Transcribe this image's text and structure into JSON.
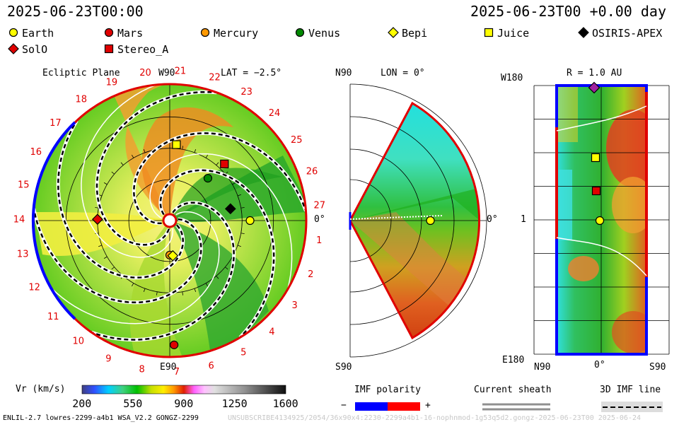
{
  "header": {
    "datetime_left": "2025-06-23T00:00",
    "datetime_right": "2025-06-23T00 +0.00 day"
  },
  "legend": [
    {
      "name": "Earth",
      "marker": "circle",
      "color": "#ffff00"
    },
    {
      "name": "Mars",
      "marker": "circle",
      "color": "#e00000"
    },
    {
      "name": "Mercury",
      "marker": "circle",
      "color": "#ff9900"
    },
    {
      "name": "Venus",
      "marker": "circle",
      "color": "#008800"
    },
    {
      "name": "Bepi",
      "marker": "diamond",
      "color": "#ffff00"
    },
    {
      "name": "Juice",
      "marker": "square",
      "color": "#ffff00"
    },
    {
      "name": "OSIRIS-APEX",
      "marker": "diamond",
      "color": "#000000"
    },
    {
      "name": "SolO",
      "marker": "diamond",
      "color": "#e00000"
    },
    {
      "name": "Stereo_A",
      "marker": "square",
      "color": "#e00000"
    }
  ],
  "panels": {
    "ecliptic": {
      "title": "Ecliptic Plane",
      "top_label": "W90",
      "bottom_label": "E90",
      "lat_label": "LAT = −2.5°",
      "right_label": "0°"
    },
    "meridional": {
      "top_label": "N90",
      "bottom_label": "S90",
      "lon_label": "LON = 0°",
      "right_label": "0°"
    },
    "radial": {
      "r_label": "R = 1.0 AU",
      "top_left": "W180",
      "bottom_left": "E180",
      "mid_left": "1",
      "bottom_n": "N90",
      "bottom_mid": "0°",
      "bottom_s": "S90"
    }
  },
  "carrington_numbers": [
    "1",
    "2",
    "3",
    "4",
    "5",
    "6",
    "7",
    "8",
    "9",
    "10",
    "11",
    "12",
    "13",
    "14",
    "15",
    "16",
    "17",
    "18",
    "19",
    "20",
    "21",
    "22",
    "23",
    "24",
    "25",
    "26",
    "27"
  ],
  "colorbar": {
    "label": "Vr (km/s)",
    "ticks": [
      "200",
      "550",
      "900",
      "1250",
      "1600"
    ],
    "min": 200,
    "max": 1600
  },
  "imf_polarity": {
    "title": "IMF polarity",
    "minus": "−",
    "plus": "+",
    "negative_color": "#0000ff",
    "positive_color": "#ff0000"
  },
  "current_sheath": {
    "title": "Current sheath"
  },
  "imf_line": {
    "title": "3D IMF line"
  },
  "footer": {
    "left": "ENLIL-2.7 lowres-2299-a4b1 WSA_V2.2 GONGZ-2299",
    "right": "UNSUBSCRIBE4134925/2054/36x90x4:2230-2299a4b1-16-nophnmod-1g53q5d2.gongz-2025-06-23T00 2025-06-24"
  },
  "chart_data": {
    "type": "heatmap",
    "quantity": "Vr (km/s)",
    "color_range": [
      200,
      1600
    ],
    "bodies": [
      {
        "name": "Earth",
        "lon_deg": 0,
        "r_au": 1.0
      },
      {
        "name": "Mars",
        "lon_deg": -88,
        "r_au": 1.55
      },
      {
        "name": "Mercury",
        "lon_deg": -90,
        "r_au": 0.43
      },
      {
        "name": "Venus",
        "lon_deg": 48,
        "r_au": 0.71
      },
      {
        "name": "Bepi",
        "lon_deg": -85,
        "r_au": 0.44
      },
      {
        "name": "Juice",
        "lon_deg": 85,
        "r_au": 0.95
      },
      {
        "name": "OSIRIS-APEX",
        "lon_deg": 11,
        "r_au": 0.77
      },
      {
        "name": "SolO",
        "lon_deg": 179,
        "r_au": 0.9
      },
      {
        "name": "Stereo_A",
        "lon_deg": 46,
        "r_au": 0.98
      }
    ]
  }
}
